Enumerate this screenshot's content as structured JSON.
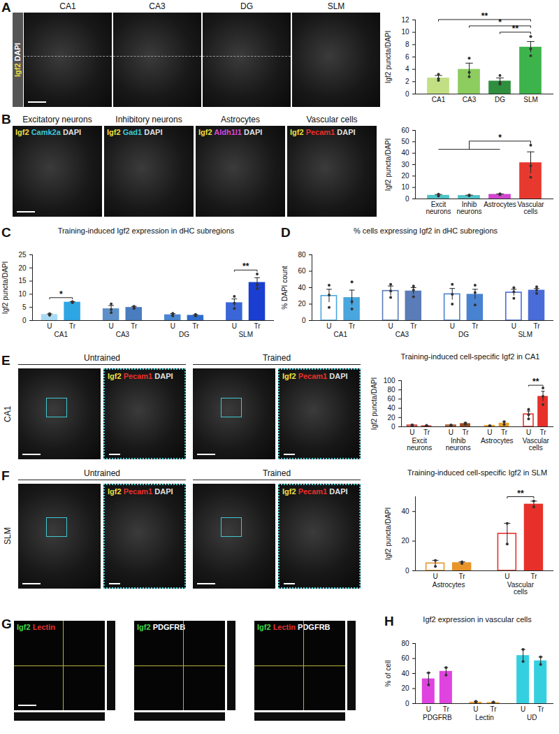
{
  "images": [
    {
      "panel": "A",
      "side_labels": [
        {
          "text": "Igf2",
          "color": "#f0e040"
        },
        {
          "text": "DAPI",
          "color": "#ffffff"
        }
      ],
      "tiles": [
        {
          "title": "CA1"
        },
        {
          "title": "CA3"
        },
        {
          "title": "DG"
        },
        {
          "title": "SLM"
        }
      ]
    },
    {
      "panel": "B",
      "tiles": [
        {
          "title": "Excitatory neurons",
          "labels": [
            {
              "text": "Igf2",
              "color": "#f0e040"
            },
            {
              "text": "Camk2a",
              "color": "#3cc8d8"
            },
            {
              "text": "DAPI",
              "color": "#e0e0e0"
            }
          ]
        },
        {
          "title": "Inhibitory neurons",
          "labels": [
            {
              "text": "Igf2",
              "color": "#f0e040"
            },
            {
              "text": "Gad1",
              "color": "#3cc8d8"
            },
            {
              "text": "DAPI",
              "color": "#e0e0e0"
            }
          ]
        },
        {
          "title": "Astrocytes",
          "labels": [
            {
              "text": "Igf2",
              "color": "#f0e040"
            },
            {
              "text": "Aldh1l1",
              "color": "#d848d8"
            },
            {
              "text": "DAPI",
              "color": "#e0e0e0"
            }
          ]
        },
        {
          "title": "Vascular cells",
          "labels": [
            {
              "text": "Igf2",
              "color": "#f0e040"
            },
            {
              "text": "Pecam1",
              "color": "#e8302a"
            },
            {
              "text": "DAPI",
              "color": "#e0e0e0"
            }
          ]
        }
      ]
    },
    {
      "panel": "E",
      "region": "CA1",
      "conditions": [
        "Untrained",
        "Trained"
      ],
      "inset_labels": [
        {
          "text": "Igf2",
          "color": "#f0e040"
        },
        {
          "text": "Pecam1",
          "color": "#e8302a"
        },
        {
          "text": "DAPI",
          "color": "#e0e0e0"
        }
      ]
    },
    {
      "panel": "F",
      "region": "SLM",
      "conditions": [
        "Untrained",
        "Trained"
      ],
      "inset_labels": [
        {
          "text": "Igf2",
          "color": "#f0e040"
        },
        {
          "text": "Pecam1",
          "color": "#e8302a"
        },
        {
          "text": "DAPI",
          "color": "#e0e0e0"
        }
      ]
    },
    {
      "panel": "G",
      "tiles": [
        {
          "labels": [
            {
              "text": "Igf2",
              "color": "#40d848"
            },
            {
              "text": "Lectin",
              "color": "#e8302a"
            }
          ]
        },
        {
          "labels": [
            {
              "text": "Igf2",
              "color": "#40d848"
            },
            {
              "text": "PDGFRB",
              "color": "#ffffff"
            }
          ]
        },
        {
          "labels": [
            {
              "text": "Igf2",
              "color": "#40d848"
            },
            {
              "text": "Lectin",
              "color": "#e8302a"
            },
            {
              "text": "PDGFRB",
              "color": "#ffffff"
            }
          ]
        }
      ]
    }
  ],
  "chart_data": [
    {
      "type": "bar",
      "y_label": "Igf2 puncta/DAPI",
      "categories": [
        "CA1",
        "CA3",
        "DG",
        "SLM"
      ],
      "values": [
        2.6,
        4.0,
        2.1,
        7.6
      ],
      "errors": [
        0.4,
        1.0,
        0.5,
        0.9
      ],
      "points": [
        [
          2.2,
          2.5,
          3.2
        ],
        [
          2.8,
          3.5,
          5.8
        ],
        [
          1.6,
          1.9,
          3.0
        ],
        [
          6.2,
          7.3,
          9.3
        ]
      ],
      "colors": [
        "#c3df84",
        "#8dcc5e",
        "#2f8f3e",
        "#3db34c"
      ],
      "ylim": [
        0,
        12
      ],
      "yticks": [
        0,
        2,
        4,
        6,
        8,
        10,
        12
      ],
      "significance": [
        {
          "from": "DG",
          "to": "SLM",
          "label": "**"
        },
        {
          "from": "CA3",
          "to": "SLM",
          "label": "*"
        },
        {
          "from": "CA1",
          "to": "SLM",
          "label": "**"
        }
      ]
    },
    {
      "type": "bar",
      "y_label": "Igf2 puncta/DAPI",
      "categories": [
        "Excit neurons",
        "Inhib neurons",
        "Astrocytes",
        "Vascular cells"
      ],
      "values": [
        3.2,
        3.0,
        4.0,
        31.7
      ],
      "errors": [
        0.7,
        0.3,
        0.4,
        9.5
      ],
      "points": [
        [
          2.5,
          3.0,
          4.2
        ],
        [
          2.7,
          3.0,
          3.4
        ],
        [
          3.6,
          4.0,
          4.5
        ],
        [
          19,
          29,
          47
        ]
      ],
      "colors": [
        "#4fc3c8",
        "#4fc3c8",
        "#d145cf",
        "#e8392f"
      ],
      "ylim": [
        0,
        60
      ],
      "yticks": [
        0,
        10,
        20,
        30,
        40,
        50,
        60
      ],
      "significance": [
        {
          "from": [
            "Excit neurons",
            "Inhib neurons",
            "Astrocytes"
          ],
          "to": "Vascular cells",
          "label": "*"
        }
      ]
    },
    {
      "type": "bar",
      "panel": "C",
      "title": "Training-induced Igf2 expression in dHC subregions",
      "y_label": "Igf2 puncta/DAPI",
      "groups": [
        "CA1",
        "CA3",
        "DG",
        "SLM"
      ],
      "series": [
        {
          "name": "U",
          "values": [
            2.3,
            4.5,
            2.2,
            6.8
          ],
          "errors": [
            0.2,
            1.2,
            0.4,
            1.4
          ],
          "points": [
            [
              2.0,
              2.3,
              2.6
            ],
            [
              3.0,
              4.2,
              6.3
            ],
            [
              1.7,
              2.2,
              2.7
            ],
            [
              4.6,
              6.6,
              9.2
            ]
          ],
          "colors": [
            "#a9daf3",
            "#5d90c8",
            "#4a86d2",
            "#3a66d8"
          ]
        },
        {
          "name": "Tr",
          "values": [
            7.0,
            5.0,
            2.0,
            14.5
          ],
          "errors": [
            0.2,
            0.4,
            0.2,
            1.8
          ],
          "points": [
            [
              6.8,
              7.0,
              7.2
            ],
            [
              4.6,
              5.0,
              5.4
            ],
            [
              1.7,
              2.0,
              2.3
            ],
            [
              12.2,
              13.6,
              17.7
            ]
          ],
          "colors": [
            "#2ea6e4",
            "#4a7cc0",
            "#2f6ccc",
            "#1a3ed0"
          ]
        }
      ],
      "ylim": [
        0,
        25
      ],
      "yticks": [
        0,
        5,
        10,
        15,
        20,
        25
      ],
      "significance": [
        {
          "group": "CA1",
          "label": "*"
        },
        {
          "group": "SLM",
          "label": "**"
        }
      ]
    },
    {
      "type": "bar",
      "panel": "D",
      "title": "% cells expressing Igf2 in dHC subregions",
      "y_label": "% DAPI count",
      "groups": [
        "CA1",
        "CA3",
        "DG",
        "SLM"
      ],
      "series": [
        {
          "name": "U",
          "values": [
            30,
            36,
            32,
            34
          ],
          "errors": [
            8,
            6,
            7,
            4
          ],
          "points": [
            [
              16,
              31,
              43
            ],
            [
              28,
              36,
              44
            ],
            [
              20,
              32,
              44
            ],
            [
              27,
              35,
              40
            ]
          ],
          "colors": [
            "#4aa6de",
            "#5a7cb8",
            "#4a82d2",
            "#4a6cd8"
          ]
        },
        {
          "name": "Tr",
          "values": [
            28,
            36,
            32,
            37
          ],
          "errors": [
            9,
            4,
            6,
            2
          ],
          "points": [
            [
              14,
              23,
              47
            ],
            [
              29,
              37,
              42
            ],
            [
              19,
              34,
              43
            ],
            [
              33,
              37,
              41
            ]
          ],
          "colors": [
            "#4aa6de",
            "#5a7cb8",
            "#4a82d2",
            "#4a6cd8"
          ]
        }
      ],
      "ylim": [
        0,
        80
      ],
      "yticks": [
        0,
        20,
        40,
        60,
        80
      ],
      "significance": []
    },
    {
      "type": "bar",
      "title": "Training-induced cell-specific Igf2 in CA1",
      "y_label": "Igf2 puncta/DAPI",
      "groups": [
        "Excit neurons",
        "Inhib neurons",
        "Astrocytes",
        "Vascular cells"
      ],
      "series": [
        {
          "name": "U",
          "values": [
            3,
            3,
            2,
            27
          ],
          "errors": [
            1,
            0.6,
            0.3,
            7
          ],
          "points": [
            [
              2,
              3,
              4
            ],
            [
              2.4,
              3,
              3.6
            ],
            [
              1.8,
              2.2
            ],
            [
              17,
              26,
              38
            ]
          ],
          "colors": [
            "#c8413b",
            "#9b4a1f",
            "#e8a02a",
            "#e8302a"
          ]
        },
        {
          "name": "Tr",
          "values": [
            2.5,
            7,
            8,
            66
          ],
          "errors": [
            0.5,
            1.5,
            3,
            11
          ],
          "points": [
            [
              2,
              2.5,
              3
            ],
            [
              5.5,
              7,
              8.5
            ],
            [
              5,
              11
            ],
            [
              48,
              66,
              84
            ]
          ],
          "colors": [
            "#c8413b",
            "#9b4a1f",
            "#e8a02a",
            "#e8302a"
          ]
        }
      ],
      "ylim": [
        0,
        100
      ],
      "yticks": [
        0,
        20,
        40,
        60,
        80,
        100
      ],
      "significance": [
        {
          "group": "Vascular cells",
          "label": "**"
        }
      ]
    },
    {
      "type": "bar",
      "title": "Training-induced cell-specific Igf2 in SLM",
      "y_label": "Igf2 puncta/DAPI",
      "groups": [
        "Astrocytes",
        "Vascular cells"
      ],
      "series": [
        {
          "name": "U",
          "values": [
            5,
            25
          ],
          "errors": [
            2,
            7
          ],
          "points": [
            [
              3,
              7
            ],
            [
              18,
              32
            ]
          ],
          "colors": [
            "#e8952a",
            "#e8302a"
          ]
        },
        {
          "name": "Tr",
          "values": [
            5.5,
            45
          ],
          "errors": [
            0.5,
            2
          ],
          "points": [
            [
              5,
              6
            ],
            [
              43,
              47
            ]
          ],
          "colors": [
            "#e8952a",
            "#e8302a"
          ]
        }
      ],
      "ylim": [
        0,
        50
      ],
      "yticks": [
        0,
        20,
        40
      ],
      "significance": [
        {
          "group": "Vascular cells",
          "label": "**"
        }
      ]
    },
    {
      "type": "bar",
      "panel": "H",
      "title": "Igf2 expression in vascular cells",
      "y_label": "% of cell",
      "groups": [
        "PDGFRB",
        "Lectin",
        "UD"
      ],
      "series": [
        {
          "name": "U",
          "values": [
            33,
            2,
            64
          ],
          "errors": [
            8,
            1,
            8
          ],
          "points": [
            [
              25,
              41
            ],
            [
              1,
              3
            ],
            [
              56,
              72
            ]
          ],
          "colors": [
            "#e044e0",
            "#f0a030",
            "#34d0e0"
          ]
        },
        {
          "name": "Tr",
          "values": [
            43,
            1.5,
            57
          ],
          "errors": [
            5,
            0.5,
            5
          ],
          "points": [
            [
              38,
              48
            ],
            [
              1,
              2
            ],
            [
              52,
              62
            ]
          ],
          "colors": [
            "#e044e0",
            "#f0a030",
            "#34d0e0"
          ]
        }
      ],
      "ylim": [
        0,
        80
      ],
      "yticks": [
        0,
        20,
        40,
        60,
        80
      ],
      "significance": []
    }
  ]
}
